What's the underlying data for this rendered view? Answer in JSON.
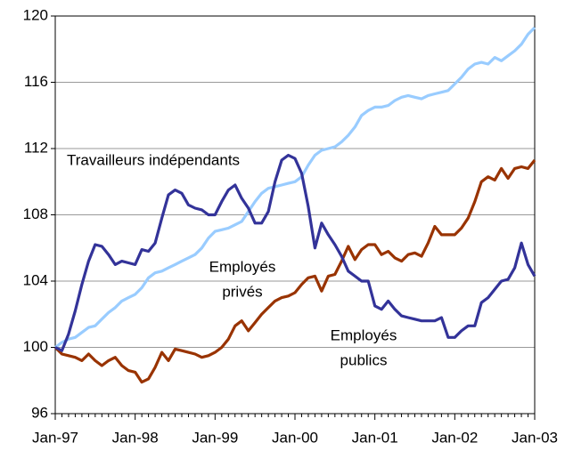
{
  "chart_data": {
    "type": "line",
    "categories": [
      "Jan-97",
      null,
      null,
      null,
      null,
      null,
      null,
      null,
      null,
      null,
      null,
      null,
      "Jan-98",
      null,
      null,
      null,
      null,
      null,
      null,
      null,
      null,
      null,
      null,
      null,
      "Jan-99",
      null,
      null,
      null,
      null,
      null,
      null,
      null,
      null,
      null,
      null,
      null,
      "Jan-00",
      null,
      null,
      null,
      null,
      null,
      null,
      null,
      null,
      null,
      null,
      null,
      "Jan-01",
      null,
      null,
      null,
      null,
      null,
      null,
      null,
      null,
      null,
      null,
      null,
      "Jan-02",
      null,
      null,
      null,
      null,
      null,
      null,
      null,
      null,
      null,
      null,
      null,
      "Jan-03"
    ],
    "ylim": [
      96,
      120
    ],
    "yticks": [
      96,
      100,
      104,
      108,
      112,
      116,
      120
    ],
    "grid": true,
    "series": [
      {
        "label_lines": [
          "Travailleurs indépendants"
        ],
        "color": "#99ccff",
        "values": [
          100,
          100.3,
          100.5,
          100.6,
          100.9,
          101.2,
          101.3,
          101.7,
          102.1,
          102.4,
          102.8,
          103.0,
          103.2,
          103.6,
          104.2,
          104.5,
          104.6,
          104.8,
          105.0,
          105.2,
          105.4,
          105.6,
          106.0,
          106.6,
          107.0,
          107.1,
          107.2,
          107.4,
          107.6,
          108.2,
          108.8,
          109.3,
          109.6,
          109.7,
          109.8,
          109.9,
          110.0,
          110.3,
          111.0,
          111.6,
          111.9,
          112.0,
          112.1,
          112.4,
          112.8,
          113.3,
          114.0,
          114.3,
          114.5,
          114.5,
          114.6,
          114.9,
          115.1,
          115.2,
          115.1,
          115.0,
          115.2,
          115.3,
          115.4,
          115.5,
          115.9,
          116.3,
          116.8,
          117.1,
          117.2,
          117.1,
          117.5,
          117.3,
          117.6,
          117.9,
          118.3,
          118.9,
          119.3
        ]
      },
      {
        "label_lines": [
          "Employés",
          "privés"
        ],
        "color": "#993300",
        "values": [
          100,
          99.6,
          99.5,
          99.4,
          99.2,
          99.6,
          99.2,
          98.9,
          99.2,
          99.4,
          98.9,
          98.6,
          98.5,
          97.9,
          98.1,
          98.8,
          99.7,
          99.2,
          99.9,
          99.8,
          99.7,
          99.6,
          99.4,
          99.5,
          99.7,
          100.0,
          100.5,
          101.3,
          101.6,
          101.0,
          101.5,
          102.0,
          102.4,
          102.8,
          103.0,
          103.1,
          103.3,
          103.8,
          104.2,
          104.3,
          103.4,
          104.3,
          104.4,
          105.2,
          106.1,
          105.3,
          105.9,
          106.2,
          106.2,
          105.6,
          105.8,
          105.4,
          105.2,
          105.6,
          105.7,
          105.5,
          106.3,
          107.3,
          106.8,
          106.8,
          106.8,
          107.2,
          107.8,
          108.8,
          110.0,
          110.3,
          110.1,
          110.8,
          110.2,
          110.8,
          110.9,
          110.8,
          111.3
        ]
      },
      {
        "label_lines": [
          "Employés",
          "publics"
        ],
        "color": "#333399",
        "values": [
          100,
          99.8,
          100.8,
          102.2,
          103.8,
          105.2,
          106.2,
          106.1,
          105.6,
          105.0,
          105.2,
          105.1,
          105.0,
          105.9,
          105.8,
          106.3,
          107.8,
          109.2,
          109.5,
          109.3,
          108.6,
          108.4,
          108.3,
          108.0,
          108.0,
          108.8,
          109.5,
          109.8,
          109.0,
          108.4,
          107.5,
          107.5,
          108.2,
          110.0,
          111.3,
          111.6,
          111.4,
          110.5,
          108.5,
          106.0,
          107.5,
          106.8,
          106.2,
          105.5,
          104.6,
          104.3,
          104.0,
          104.0,
          102.5,
          102.3,
          102.8,
          102.3,
          101.9,
          101.8,
          101.7,
          101.6,
          101.6,
          101.6,
          101.8,
          100.6,
          100.6,
          101.0,
          101.3,
          101.3,
          102.7,
          103.0,
          103.5,
          104.0,
          104.1,
          104.8,
          106.3,
          105.0,
          104.3
        ]
      }
    ]
  }
}
